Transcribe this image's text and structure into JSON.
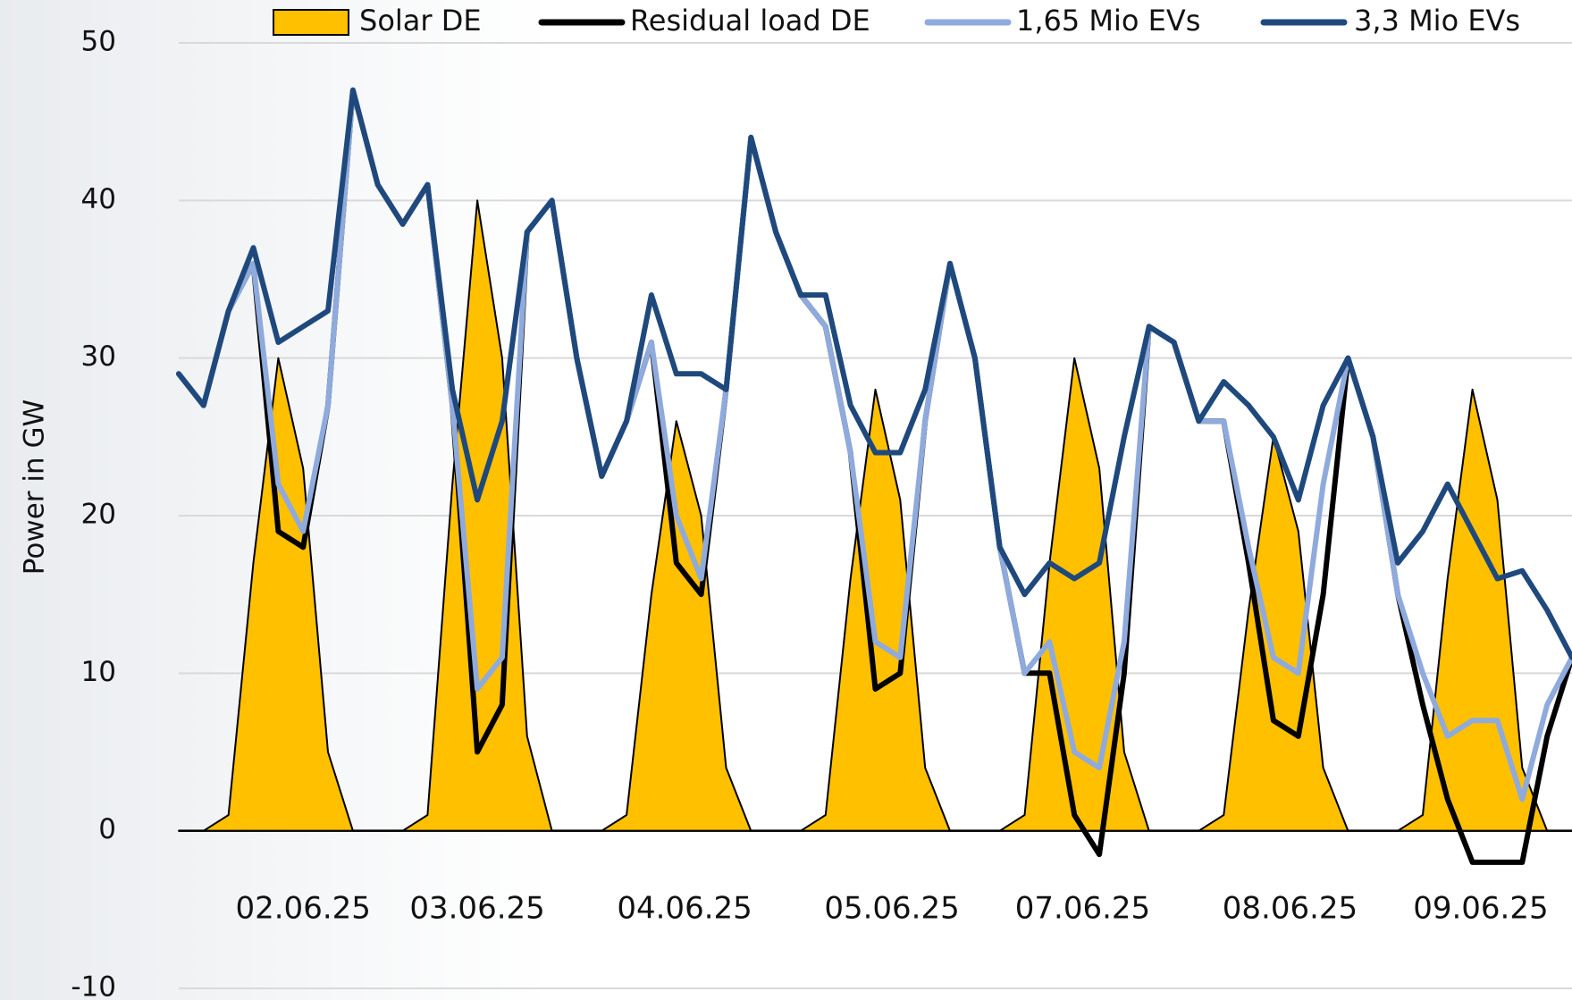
{
  "chart_data": {
    "type": "line",
    "y_label": "Power in GW",
    "x": [
      0,
      3,
      6,
      9,
      12,
      15,
      18,
      21,
      24,
      27,
      30,
      33,
      36,
      39,
      42,
      45,
      48,
      51,
      54,
      57,
      60,
      63,
      66,
      69,
      72,
      75,
      78,
      81,
      84,
      87,
      90,
      93,
      96,
      99,
      102,
      105,
      108,
      111,
      114,
      117,
      120,
      123,
      126,
      129,
      132,
      135,
      138,
      141,
      144,
      147,
      150,
      153,
      156,
      159,
      162,
      165,
      168
    ],
    "xlim": [
      0,
      168
    ],
    "xticks": [
      {
        "value": 15,
        "label": "02.06.25"
      },
      {
        "value": 36,
        "label": "03.06.25"
      },
      {
        "value": 61,
        "label": "04.06.25"
      },
      {
        "value": 86,
        "label": "05.06.25"
      },
      {
        "value": 109,
        "label": "07.06.25"
      },
      {
        "value": 134,
        "label": "08.06.25"
      },
      {
        "value": 157,
        "label": "09.06.25"
      }
    ],
    "ylim": [
      -10,
      50
    ],
    "yticks": [
      -10,
      0,
      10,
      20,
      30,
      40,
      50
    ],
    "grid": true,
    "legend": "top",
    "series": [
      {
        "name": "Solar DE",
        "style": "area",
        "color": "#ffc000",
        "values": [
          0,
          0,
          1,
          17,
          30,
          23,
          5,
          0,
          0,
          0,
          1,
          22,
          40,
          30,
          6,
          0,
          0,
          0,
          1,
          15,
          26,
          20,
          4,
          0,
          0,
          0,
          1,
          16,
          28,
          21,
          4,
          0,
          0,
          0,
          1,
          17,
          30,
          23,
          5,
          0,
          0,
          0,
          1,
          14,
          25,
          19,
          4,
          0,
          0,
          0,
          1,
          16,
          28,
          21,
          4,
          0,
          0
        ]
      },
      {
        "name": "Residual load DE",
        "style": "line",
        "color": "#000000",
        "values": [
          29,
          27,
          33,
          36,
          19,
          18,
          27,
          47,
          41,
          38.5,
          41,
          27,
          5,
          8,
          38,
          40,
          30,
          22.5,
          26,
          31,
          17,
          15,
          28,
          44,
          38,
          34,
          32,
          24,
          9,
          10,
          26,
          36,
          30,
          18,
          10,
          10,
          1,
          -1.5,
          10,
          32,
          31,
          26,
          26,
          17,
          7,
          6,
          15,
          30,
          25,
          15,
          8,
          2,
          -2,
          -2,
          -2,
          6,
          11
        ]
      },
      {
        "name": "1,65 Mio EVs",
        "style": "line",
        "color": "#8faadc",
        "values": [
          29,
          27,
          33,
          36,
          22,
          19,
          27,
          47,
          41,
          38.5,
          41,
          27,
          9,
          11,
          38,
          40,
          30,
          22.5,
          26,
          31,
          20,
          16,
          28,
          44,
          38,
          34,
          32,
          24,
          12,
          11,
          26,
          36,
          30,
          18,
          10,
          12,
          5,
          4,
          12,
          32,
          31,
          26,
          26,
          18,
          11,
          10,
          22,
          30,
          25,
          15,
          10,
          6,
          7,
          7,
          2,
          8,
          11
        ]
      },
      {
        "name": "3,3 Mio EVs",
        "style": "line",
        "color": "#1f497d",
        "values": [
          29,
          27,
          33,
          37,
          31,
          32,
          33,
          47,
          41,
          38.5,
          41,
          28,
          21,
          26,
          38,
          40,
          30,
          22.5,
          26,
          34,
          29,
          29,
          28,
          44,
          38,
          34,
          34,
          27,
          24,
          24,
          28,
          36,
          30,
          18,
          15,
          17,
          16,
          17,
          25,
          32,
          31,
          26,
          28.5,
          27,
          25,
          21,
          27,
          30,
          25,
          17,
          19,
          22,
          19,
          16,
          16.5,
          14,
          11
        ]
      }
    ]
  }
}
